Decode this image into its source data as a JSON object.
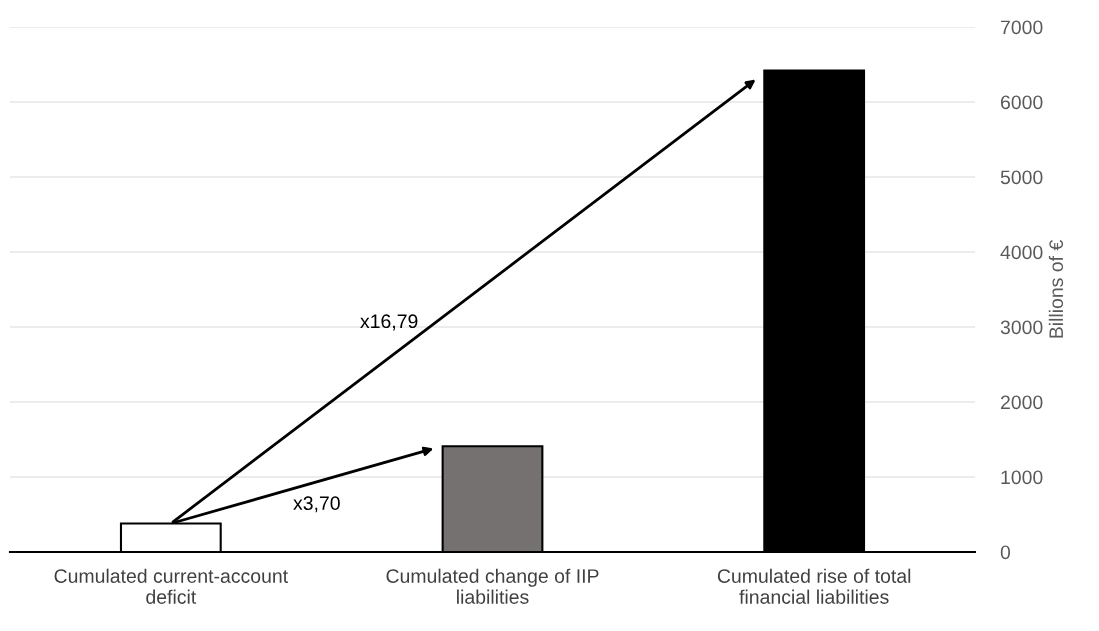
{
  "chart_data": {
    "type": "bar",
    "categories": [
      "Cumulated current-account\ndeficit",
      "Cumulated change of IIP\nliabilities",
      "Cumulated rise of total\nfinancial liabilities"
    ],
    "values": [
      380,
      1410,
      6420
    ],
    "colors": [
      "#ffffff",
      "#767171",
      "#000000"
    ],
    "ylabel": "Billions of €",
    "ylim": [
      0,
      7000
    ],
    "yticks": [
      0,
      1000,
      2000,
      3000,
      4000,
      5000,
      6000,
      7000
    ],
    "grid": "y",
    "annotations": [
      "x3,70",
      "x16,79"
    ]
  }
}
